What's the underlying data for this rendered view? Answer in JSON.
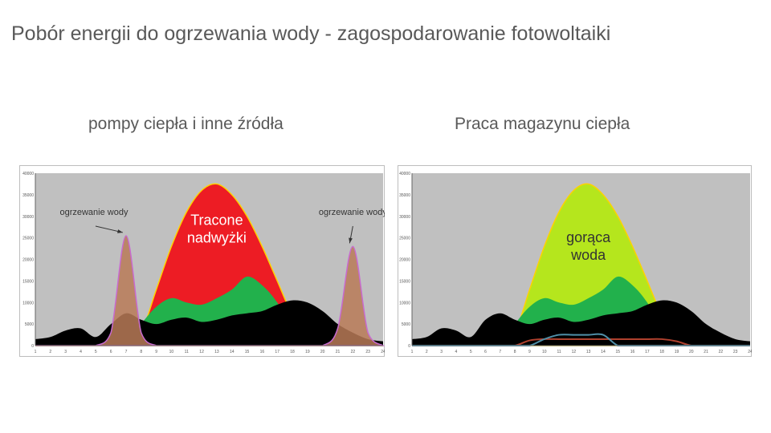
{
  "slide": {
    "title": "Pobór energii do ogrzewania wody - zagospodarowanie fotowoltaiki",
    "left_heading": "pompy ciepła i inne źródła",
    "right_heading": "Praca magazynu ciepła"
  },
  "colors": {
    "plot_bg": "#c0c0c0",
    "base_load": "#000000",
    "pv_surplus_lost": "#ed1c24",
    "hot_water_storage": "#b5e61d",
    "green_area": "#22b14c",
    "orange_area": "#ff7f27",
    "blue_area": "#00a2e8",
    "water_heating_peak": "#b97a57",
    "pv_outline": "#ffd200"
  },
  "chart_data": [
    {
      "type": "area",
      "heading": "pompy ciepła i inne źródła",
      "x": [
        1,
        2,
        3,
        4,
        5,
        6,
        7,
        8,
        9,
        10,
        11,
        12,
        13,
        14,
        15,
        16,
        17,
        18,
        19,
        20,
        21,
        22,
        23,
        24
      ],
      "ylim": [
        0,
        40000
      ],
      "yticks": [
        0,
        5000,
        10000,
        15000,
        20000,
        25000,
        30000,
        35000,
        40000
      ],
      "grid": false,
      "series": [
        {
          "key": "pv",
          "color": "#ed1c24",
          "values": [
            0,
            0,
            0,
            0,
            0,
            0,
            0,
            3000,
            13000,
            23000,
            31000,
            36000,
            37500,
            35000,
            30000,
            23000,
            15000,
            7000,
            1500,
            0,
            0,
            0,
            0,
            0
          ]
        },
        {
          "key": "green",
          "color": "#22b14c",
          "values": [
            0,
            0,
            0,
            0,
            0,
            0,
            0,
            5000,
            9000,
            11000,
            10000,
            9500,
            11000,
            13000,
            16000,
            14000,
            10000,
            4000,
            500,
            0,
            0,
            0,
            0,
            0
          ]
        },
        {
          "key": "orange",
          "color": "#ff7f27",
          "values": [
            0,
            0,
            0,
            0,
            0,
            0,
            0,
            800,
            1000,
            1000,
            1000,
            1000,
            1000,
            1000,
            1000,
            1000,
            1000,
            1000,
            500,
            0,
            0,
            0,
            0,
            0
          ]
        },
        {
          "key": "blue",
          "color": "#00a2e8",
          "values": [
            0,
            0,
            0,
            0,
            0,
            0,
            0,
            0,
            0,
            1500,
            2500,
            2500,
            2500,
            2500,
            0,
            0,
            0,
            0,
            0,
            0,
            0,
            0,
            0,
            0
          ]
        },
        {
          "key": "base",
          "color": "#000000",
          "values": [
            1500,
            2000,
            3500,
            4000,
            2000,
            5000,
            7500,
            6000,
            5000,
            6000,
            6500,
            5500,
            6000,
            7000,
            7500,
            8000,
            9500,
            10500,
            10000,
            8000,
            5000,
            3000,
            1500,
            1000
          ]
        },
        {
          "key": "water_heating",
          "color": "#b97a57",
          "values": [
            0,
            0,
            0,
            0,
            0,
            3000,
            25500,
            3000,
            0,
            0,
            0,
            0,
            0,
            0,
            0,
            0,
            0,
            0,
            0,
            0,
            4000,
            23000,
            3000,
            0
          ]
        }
      ],
      "annotations": [
        {
          "text": "ogrzewanie wody",
          "x": 7,
          "y": 25500
        },
        {
          "text": "ogrzewanie wody",
          "x": 22,
          "y": 23000
        },
        {
          "text": "Tracone nadwyżki",
          "x": 13,
          "y": 28000
        }
      ]
    },
    {
      "type": "area",
      "heading": "Praca magazynu ciepła",
      "x": [
        1,
        2,
        3,
        4,
        5,
        6,
        7,
        8,
        9,
        10,
        11,
        12,
        13,
        14,
        15,
        16,
        17,
        18,
        19,
        20,
        21,
        22,
        23,
        24
      ],
      "ylim": [
        0,
        40000
      ],
      "yticks": [
        0,
        5000,
        10000,
        15000,
        20000,
        25000,
        30000,
        35000,
        40000
      ],
      "grid": false,
      "series": [
        {
          "key": "pv",
          "color": "#b5e61d",
          "values": [
            0,
            0,
            0,
            0,
            0,
            0,
            0,
            3000,
            13000,
            23000,
            31000,
            36000,
            37500,
            35000,
            30000,
            23000,
            15000,
            7000,
            1500,
            0,
            0,
            0,
            0,
            0
          ]
        },
        {
          "key": "green",
          "color": "#22b14c",
          "values": [
            0,
            0,
            0,
            0,
            0,
            0,
            0,
            5000,
            9000,
            11000,
            10000,
            9500,
            11000,
            13000,
            16000,
            14000,
            10000,
            4000,
            500,
            0,
            0,
            0,
            0,
            0
          ]
        },
        {
          "key": "base",
          "color": "#000000",
          "values": [
            1500,
            2000,
            4000,
            3500,
            2000,
            6000,
            7500,
            6000,
            5000,
            6000,
            6500,
            5500,
            6000,
            7000,
            7500,
            8000,
            9500,
            10500,
            10000,
            8000,
            5000,
            3000,
            1500,
            1000
          ]
        },
        {
          "key": "storage_line",
          "color": "#b0412e",
          "values": [
            0,
            0,
            0,
            0,
            0,
            0,
            0,
            0,
            1200,
            1500,
            1500,
            1500,
            1500,
            1500,
            1500,
            1500,
            1500,
            1500,
            1000,
            0,
            0,
            0,
            0,
            0
          ]
        },
        {
          "key": "blue_line",
          "color": "#4f8fa8",
          "values": [
            0,
            0,
            0,
            0,
            0,
            0,
            0,
            0,
            0,
            1500,
            2500,
            2500,
            2500,
            2500,
            0,
            0,
            0,
            0,
            0,
            0,
            0,
            0,
            0,
            0
          ]
        }
      ],
      "annotations": [
        {
          "text": "gorąca woda",
          "x": 13,
          "y": 24000
        }
      ]
    }
  ]
}
